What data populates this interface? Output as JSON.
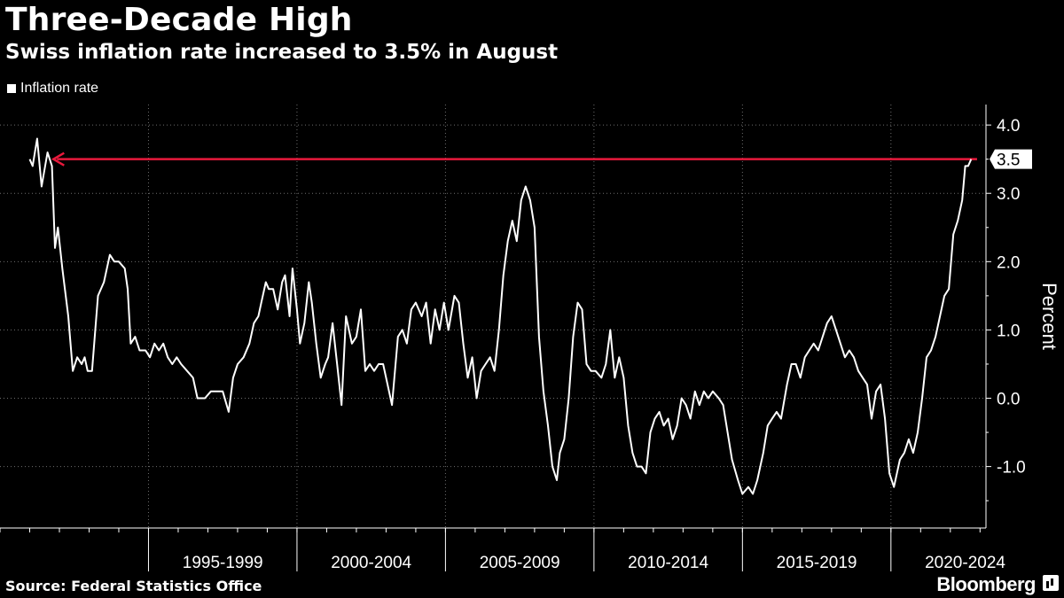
{
  "header": {
    "title": "Three-Decade High",
    "subtitle": "Swiss inflation rate increased to 3.5% in August"
  },
  "footer": {
    "source": "Source: Federal Statistics Office",
    "brand": "Bloomberg"
  },
  "colors": {
    "background": "#000000",
    "line": "#ffffff",
    "arrow": "#e8193c",
    "grid": "#6e6e6e"
  },
  "icons": {
    "brand": "bloomberg-chart-icon",
    "legend": "legend-square-icon"
  },
  "chart_data": {
    "type": "line",
    "ylabel": "Percent",
    "ylim": [
      -1.9,
      4.3
    ],
    "xlim": [
      1990.0,
      2023.2
    ],
    "y_ticks": [
      "4.0",
      "3.0",
      "2.0",
      "1.0",
      "0.0",
      "-1.0"
    ],
    "y_tick_values": [
      4.0,
      3.0,
      2.0,
      1.0,
      0.0,
      -1.0
    ],
    "x_periods": [
      {
        "label": "1995-1999",
        "start": 1995,
        "end": 2000
      },
      {
        "label": "2000-2004",
        "start": 2000,
        "end": 2005
      },
      {
        "label": "2005-2009",
        "start": 2005,
        "end": 2010
      },
      {
        "label": "2010-2014",
        "start": 2010,
        "end": 2015
      },
      {
        "label": "2015-2019",
        "start": 2015,
        "end": 2020
      },
      {
        "label": "2020-2024",
        "start": 2020,
        "end": 2025
      }
    ],
    "legend": [
      "Inflation rate"
    ],
    "last_value_label": "3.5",
    "annotation": {
      "type": "arrow",
      "y": 3.5,
      "from_x": 2022.9,
      "to_x": 1991.8
    },
    "series": [
      {
        "name": "Inflation rate",
        "points": [
          [
            1991.0,
            3.5
          ],
          [
            1991.1,
            3.4
          ],
          [
            1991.25,
            3.8
          ],
          [
            1991.4,
            3.1
          ],
          [
            1991.6,
            3.6
          ],
          [
            1991.75,
            3.4
          ],
          [
            1991.85,
            2.2
          ],
          [
            1991.95,
            2.5
          ],
          [
            1992.1,
            1.9
          ],
          [
            1992.3,
            1.2
          ],
          [
            1992.45,
            0.4
          ],
          [
            1992.6,
            0.6
          ],
          [
            1992.75,
            0.5
          ],
          [
            1992.85,
            0.6
          ],
          [
            1992.95,
            0.4
          ],
          [
            1993.1,
            0.4
          ],
          [
            1993.3,
            1.5
          ],
          [
            1993.5,
            1.7
          ],
          [
            1993.7,
            2.1
          ],
          [
            1993.85,
            2.0
          ],
          [
            1994.0,
            2.0
          ],
          [
            1994.2,
            1.9
          ],
          [
            1994.3,
            1.6
          ],
          [
            1994.4,
            0.8
          ],
          [
            1994.55,
            0.9
          ],
          [
            1994.7,
            0.7
          ],
          [
            1994.9,
            0.7
          ],
          [
            1995.05,
            0.6
          ],
          [
            1995.2,
            0.8
          ],
          [
            1995.35,
            0.7
          ],
          [
            1995.5,
            0.8
          ],
          [
            1995.65,
            0.6
          ],
          [
            1995.8,
            0.5
          ],
          [
            1995.95,
            0.6
          ],
          [
            1996.1,
            0.5
          ],
          [
            1996.3,
            0.4
          ],
          [
            1996.5,
            0.3
          ],
          [
            1996.65,
            0.0
          ],
          [
            1996.9,
            0.0
          ],
          [
            1997.1,
            0.1
          ],
          [
            1997.3,
            0.1
          ],
          [
            1997.5,
            0.1
          ],
          [
            1997.7,
            -0.2
          ],
          [
            1997.85,
            0.3
          ],
          [
            1998.0,
            0.5
          ],
          [
            1998.2,
            0.6
          ],
          [
            1998.4,
            0.8
          ],
          [
            1998.55,
            1.1
          ],
          [
            1998.7,
            1.2
          ],
          [
            1998.8,
            1.4
          ],
          [
            1998.95,
            1.7
          ],
          [
            1999.05,
            1.6
          ],
          [
            1999.2,
            1.6
          ],
          [
            1999.35,
            1.3
          ],
          [
            1999.5,
            1.7
          ],
          [
            1999.6,
            1.8
          ],
          [
            1999.75,
            1.2
          ],
          [
            1999.85,
            1.9
          ],
          [
            2000.0,
            1.3
          ],
          [
            2000.1,
            0.8
          ],
          [
            2000.25,
            1.1
          ],
          [
            2000.4,
            1.7
          ],
          [
            2000.5,
            1.4
          ],
          [
            2000.65,
            0.8
          ],
          [
            2000.8,
            0.3
          ],
          [
            2000.95,
            0.5
          ],
          [
            2001.05,
            0.6
          ],
          [
            2001.2,
            1.1
          ],
          [
            2001.35,
            0.5
          ],
          [
            2001.5,
            -0.1
          ],
          [
            2001.65,
            1.2
          ],
          [
            2001.85,
            0.8
          ],
          [
            2002.0,
            0.9
          ],
          [
            2002.15,
            1.3
          ],
          [
            2002.3,
            0.4
          ],
          [
            2002.45,
            0.5
          ],
          [
            2002.6,
            0.4
          ],
          [
            2002.75,
            0.5
          ],
          [
            2002.9,
            0.5
          ],
          [
            2003.05,
            0.2
          ],
          [
            2003.2,
            -0.1
          ],
          [
            2003.4,
            0.9
          ],
          [
            2003.55,
            1.0
          ],
          [
            2003.7,
            0.8
          ],
          [
            2003.85,
            1.3
          ],
          [
            2004.0,
            1.4
          ],
          [
            2004.2,
            1.2
          ],
          [
            2004.35,
            1.4
          ],
          [
            2004.5,
            0.8
          ],
          [
            2004.65,
            1.3
          ],
          [
            2004.8,
            1.0
          ],
          [
            2004.95,
            1.4
          ],
          [
            2005.1,
            1.0
          ],
          [
            2005.3,
            1.5
          ],
          [
            2005.45,
            1.4
          ],
          [
            2005.6,
            0.8
          ],
          [
            2005.75,
            0.3
          ],
          [
            2005.9,
            0.6
          ],
          [
            2006.05,
            0.0
          ],
          [
            2006.2,
            0.4
          ],
          [
            2006.35,
            0.5
          ],
          [
            2006.5,
            0.6
          ],
          [
            2006.65,
            0.4
          ],
          [
            2006.8,
            1.0
          ],
          [
            2006.95,
            1.8
          ],
          [
            2007.1,
            2.3
          ],
          [
            2007.25,
            2.6
          ],
          [
            2007.4,
            2.3
          ],
          [
            2007.55,
            2.9
          ],
          [
            2007.7,
            3.1
          ],
          [
            2007.85,
            2.9
          ],
          [
            2008.0,
            2.5
          ],
          [
            2008.15,
            0.9
          ],
          [
            2008.3,
            0.1
          ],
          [
            2008.45,
            -0.4
          ],
          [
            2008.6,
            -1.0
          ],
          [
            2008.75,
            -1.2
          ],
          [
            2008.85,
            -0.8
          ],
          [
            2009.0,
            -0.6
          ],
          [
            2009.15,
            0.0
          ],
          [
            2009.3,
            0.9
          ],
          [
            2009.45,
            1.4
          ],
          [
            2009.6,
            1.3
          ],
          [
            2009.75,
            0.5
          ],
          [
            2009.9,
            0.4
          ],
          [
            2010.05,
            0.4
          ],
          [
            2010.25,
            0.3
          ],
          [
            2010.4,
            0.5
          ],
          [
            2010.55,
            1.0
          ],
          [
            2010.7,
            0.3
          ],
          [
            2010.85,
            0.6
          ],
          [
            2011.0,
            0.3
          ],
          [
            2011.15,
            -0.4
          ],
          [
            2011.3,
            -0.8
          ],
          [
            2011.45,
            -1.0
          ],
          [
            2011.6,
            -1.0
          ],
          [
            2011.75,
            -1.1
          ],
          [
            2011.9,
            -0.5
          ],
          [
            2012.05,
            -0.3
          ],
          [
            2012.2,
            -0.2
          ],
          [
            2012.35,
            -0.4
          ],
          [
            2012.5,
            -0.3
          ],
          [
            2012.65,
            -0.6
          ],
          [
            2012.8,
            -0.4
          ],
          [
            2012.95,
            0.0
          ],
          [
            2013.1,
            -0.1
          ],
          [
            2013.25,
            -0.3
          ],
          [
            2013.4,
            0.1
          ],
          [
            2013.55,
            -0.1
          ],
          [
            2013.7,
            0.1
          ],
          [
            2013.85,
            0.0
          ],
          [
            2014.0,
            0.1
          ],
          [
            2014.2,
            0.0
          ],
          [
            2014.35,
            -0.1
          ],
          [
            2014.5,
            -0.5
          ],
          [
            2014.65,
            -0.9
          ],
          [
            2014.85,
            -1.2
          ],
          [
            2015.0,
            -1.4
          ],
          [
            2015.2,
            -1.3
          ],
          [
            2015.35,
            -1.4
          ],
          [
            2015.5,
            -1.2
          ],
          [
            2015.7,
            -0.8
          ],
          [
            2015.85,
            -0.4
          ],
          [
            2016.0,
            -0.3
          ],
          [
            2016.15,
            -0.2
          ],
          [
            2016.3,
            -0.3
          ],
          [
            2016.5,
            0.2
          ],
          [
            2016.65,
            0.5
          ],
          [
            2016.8,
            0.5
          ],
          [
            2016.95,
            0.3
          ],
          [
            2017.1,
            0.6
          ],
          [
            2017.25,
            0.7
          ],
          [
            2017.4,
            0.8
          ],
          [
            2017.55,
            0.7
          ],
          [
            2017.7,
            0.9
          ],
          [
            2017.85,
            1.1
          ],
          [
            2018.0,
            1.2
          ],
          [
            2018.15,
            1.0
          ],
          [
            2018.3,
            0.8
          ],
          [
            2018.45,
            0.6
          ],
          [
            2018.6,
            0.7
          ],
          [
            2018.75,
            0.6
          ],
          [
            2018.9,
            0.4
          ],
          [
            2019.05,
            0.3
          ],
          [
            2019.2,
            0.2
          ],
          [
            2019.35,
            -0.3
          ],
          [
            2019.5,
            0.1
          ],
          [
            2019.65,
            0.2
          ],
          [
            2019.8,
            -0.3
          ],
          [
            2019.95,
            -1.1
          ],
          [
            2020.1,
            -1.3
          ],
          [
            2020.3,
            -0.9
          ],
          [
            2020.45,
            -0.8
          ],
          [
            2020.6,
            -0.6
          ],
          [
            2020.75,
            -0.8
          ],
          [
            2020.9,
            -0.5
          ],
          [
            2021.05,
            0.0
          ],
          [
            2021.2,
            0.6
          ],
          [
            2021.35,
            0.7
          ],
          [
            2021.5,
            0.9
          ],
          [
            2021.65,
            1.2
          ],
          [
            2021.8,
            1.5
          ],
          [
            2021.95,
            1.6
          ],
          [
            2022.1,
            2.4
          ],
          [
            2022.25,
            2.6
          ],
          [
            2022.4,
            2.9
          ],
          [
            2022.5,
            3.4
          ],
          [
            2022.6,
            3.4
          ],
          [
            2022.7,
            3.5
          ]
        ]
      }
    ]
  }
}
